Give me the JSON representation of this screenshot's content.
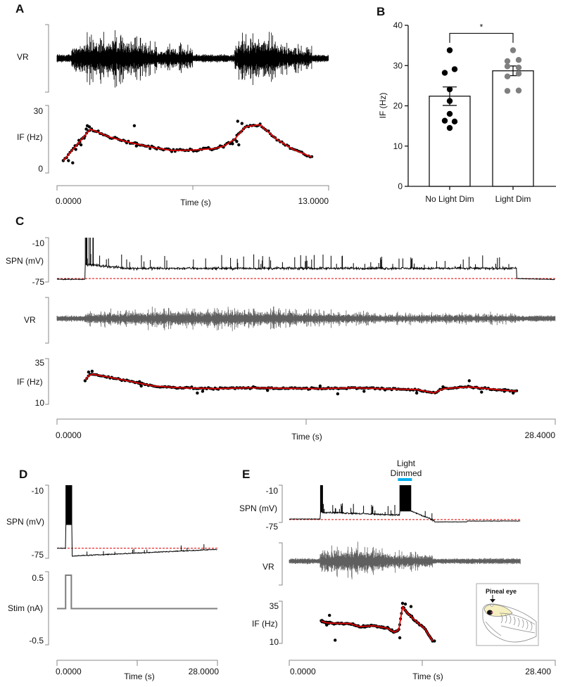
{
  "chart_data": [
    {
      "id": "A",
      "panel_label": "A",
      "type": "line",
      "title": "",
      "xlabel": "Time (s)",
      "x_tick_labels": [
        "0.0000",
        "13.0000"
      ],
      "xlim": [
        0,
        13
      ],
      "traces": [
        {
          "name": "VR",
          "ylabel": "VR",
          "color": "#000000",
          "kind": "extracellular",
          "bursts": [
            {
              "start": 0.7,
              "end": 6.5,
              "peak": 1.0
            },
            {
              "start": 8.5,
              "end": 12.2,
              "peak": 1.0
            }
          ],
          "end_time": 13.0
        },
        {
          "name": "IF (Hz)",
          "ylabel": "IF (Hz)",
          "ylim": [
            0,
            30
          ],
          "y_tick_labels": [
            "30",
            "0"
          ],
          "scatter_color": "#000000",
          "fit_color": "#e00000",
          "fit": {
            "x": [
              0.3,
              1.6,
              2.5,
              3.5,
              4.5,
              5.5,
              6.5,
              7.5,
              8.0,
              8.5,
              9.0,
              9.7,
              10.5,
              11.3,
              12.2
            ],
            "y": [
              5.5,
              19.5,
              16.0,
              13.5,
              11.5,
              10.0,
              10.2,
              10.8,
              12.0,
              15.0,
              20.5,
              21.5,
              15.0,
              10.5,
              7.0
            ]
          },
          "scatter": {
            "x": [
              0.3,
              0.55,
              0.75,
              0.9,
              1.05,
              1.15,
              1.3,
              1.4,
              1.45,
              1.55,
              3.7,
              3.8,
              8.4,
              8.6,
              8.7,
              8.85,
              8.65
            ],
            "y": [
              5.5,
              5.5,
              4.5,
              10.5,
              14.5,
              12.5,
              15.5,
              19.5,
              21.0,
              20.5,
              21.0,
              12.0,
              13.0,
              14.0,
              12.5,
              22.0,
              23.0
            ]
          }
        }
      ]
    },
    {
      "id": "B",
      "panel_label": "B",
      "type": "bar",
      "title": "",
      "xlabel": "",
      "ylabel": "IF (Hz)",
      "ylim": [
        0,
        40
      ],
      "y_ticks": [
        0,
        10,
        20,
        30,
        40
      ],
      "categories": [
        "No Light Dim",
        "Light Dim"
      ],
      "values": [
        22.4,
        28.7
      ],
      "sem": [
        2.3,
        1.2
      ],
      "points": [
        {
          "category": "No Light Dim",
          "color": "#000000",
          "values": [
            33.8,
            28.2,
            29.1,
            24.1,
            21.2,
            18.0,
            16.3,
            16.1,
            14.5
          ]
        },
        {
          "category": "Light Dim",
          "color": "#7f7f7f",
          "values": [
            33.8,
            31.1,
            31.4,
            29.8,
            29.5,
            27.3,
            28.0,
            23.7,
            23.8
          ]
        }
      ],
      "significance": {
        "label": "*",
        "between": [
          "No Light Dim",
          "Light Dim"
        ]
      }
    },
    {
      "id": "C",
      "panel_label": "C",
      "type": "line",
      "xlabel": "Time (s)",
      "x_tick_labels": [
        "0.0000",
        "28.4000"
      ],
      "xlim": [
        0,
        28.4
      ],
      "traces": [
        {
          "name": "SPN (mV)",
          "ylabel": "SPN (mV)",
          "ylim": [
            -75,
            -10
          ],
          "y_tick_labels": [
            "-10",
            "-75"
          ],
          "color": "#000000",
          "baseline_color": "#e00000",
          "baseline_mv": -70,
          "depolarized_start": 1.6,
          "depolarized_end": 26.2,
          "mean_depolarization_mv": -55,
          "end_time": 28.4
        },
        {
          "name": "VR",
          "ylabel": "VR",
          "color": "#5f5f5f",
          "kind": "extracellular",
          "bursts": [
            {
              "start": 1.6,
              "end": 26.2,
              "peak": 0.55
            }
          ],
          "end_time": 28.4
        },
        {
          "name": "IF (Hz)",
          "ylabel": "IF (Hz)",
          "ylim": [
            10,
            35
          ],
          "y_tick_labels": [
            "35",
            "10"
          ],
          "scatter_color": "#000000",
          "fit_color": "#e00000",
          "fit": {
            "x": [
              1.6,
              1.9,
              3.0,
              4.0,
              5.5,
              7.0,
              9.0,
              11.0,
              13.0,
              15.0,
              17.0,
              19.0,
              20.5,
              21.5,
              22.0,
              23.5,
              25.0,
              26.2
            ],
            "y": [
              24.0,
              27.5,
              25.5,
              23.5,
              20.5,
              19.5,
              19.0,
              19.5,
              19.2,
              19.0,
              19.5,
              18.8,
              18.5,
              16.5,
              19.0,
              20.0,
              18.5,
              17.5
            ]
          },
          "scatter": {
            "x": [
              1.6,
              1.8,
              2.0,
              4.7,
              4.8,
              8.3,
              8.0,
              12.0,
              15.0,
              16.0,
              17.5,
              20.5,
              22.0,
              23.5,
              24.2,
              25.5,
              26.0
            ],
            "y": [
              23.5,
              28.5,
              29.0,
              23.0,
              20.5,
              17.5,
              16.5,
              18.0,
              20.5,
              16.0,
              17.5,
              16.5,
              20.0,
              23.5,
              17.0,
              17.5,
              16.5
            ]
          }
        }
      ]
    },
    {
      "id": "D",
      "panel_label": "D",
      "type": "line",
      "xlabel": "Time (s)",
      "x_tick_labels": [
        "0.0000",
        "28.0000"
      ],
      "xlim": [
        0,
        28
      ],
      "traces": [
        {
          "name": "SPN (mV)",
          "ylabel": "SPN (mV)",
          "ylim": [
            -75,
            -10
          ],
          "y_tick_labels": [
            "-10",
            "-75"
          ],
          "color": "#000000",
          "baseline_color": "#e00000",
          "baseline_mv": -66,
          "spike_start": 1.5,
          "spike_end": 2.6,
          "after_hyperpolarization_mv": -73,
          "end_time": 28
        },
        {
          "name": "Stim (nA)",
          "ylabel": "Stim (nA)",
          "ylim": [
            -0.5,
            0.5
          ],
          "y_tick_labels": [
            "0.5",
            "-0.5"
          ],
          "color": "#7f7f7f",
          "pulse_start": 1.5,
          "pulse_end": 2.5,
          "pulse_amplitude_na": 0.5,
          "end_time": 28
        }
      ]
    },
    {
      "id": "E",
      "panel_label": "E",
      "type": "line",
      "xlabel": "Time (s)",
      "x_tick_labels": [
        "0.0000",
        "28.400"
      ],
      "xlim": [
        0,
        28.4
      ],
      "annotation": {
        "label_line1": "Light",
        "label_line2": "Dimmed",
        "bar_color": "#00aeef",
        "start": 11.6,
        "end": 13.1
      },
      "inset": {
        "label": "Pineal eye",
        "arrow": "down"
      },
      "traces": [
        {
          "name": "SPN (mV)",
          "ylabel": "SPN (mV)",
          "ylim": [
            -75,
            -10
          ],
          "y_tick_labels": [
            "-10",
            "-75"
          ],
          "color": "#000000",
          "baseline_color": "#e00000",
          "baseline_mv": -70,
          "depolarized_start": 3.3,
          "burst_start": 11.8,
          "burst_end": 13.0,
          "depolarized_end": 15.5,
          "end_time": 24.7
        },
        {
          "name": "VR",
          "ylabel": "VR",
          "color": "#5f5f5f",
          "kind": "extracellular",
          "bursts": [
            {
              "start": 3.3,
              "end": 15.3,
              "peak": 0.9
            }
          ],
          "end_time": 24.7
        },
        {
          "name": "IF (Hz)",
          "ylabel": "IF (Hz)",
          "ylim": [
            10,
            35
          ],
          "y_tick_labels": [
            "35",
            "10"
          ],
          "scatter_color": "#000000",
          "fit_color": "#e00000",
          "fit": {
            "x": [
              3.4,
              4.0,
              5.0,
              6.5,
              7.5,
              9.0,
              10.5,
              11.2,
              11.7,
              12.1,
              12.6,
              13.5,
              14.5,
              15.3
            ],
            "y": [
              24.0,
              22.8,
              22.5,
              22.4,
              20.5,
              21.0,
              19.5,
              17.0,
              18.5,
              33.0,
              29.0,
              24.0,
              19.0,
              11.5
            ]
          },
          "scatter": {
            "x": [
              4.3,
              4.9,
              11.8,
              12.1,
              12.4,
              13.0,
              15.5,
              3.5,
              4.0
            ],
            "y": [
              27.5,
              12.0,
              13.5,
              35.0,
              34.5,
              33.0,
              11.5,
              23.5,
              21.5
            ]
          }
        }
      ]
    }
  ]
}
